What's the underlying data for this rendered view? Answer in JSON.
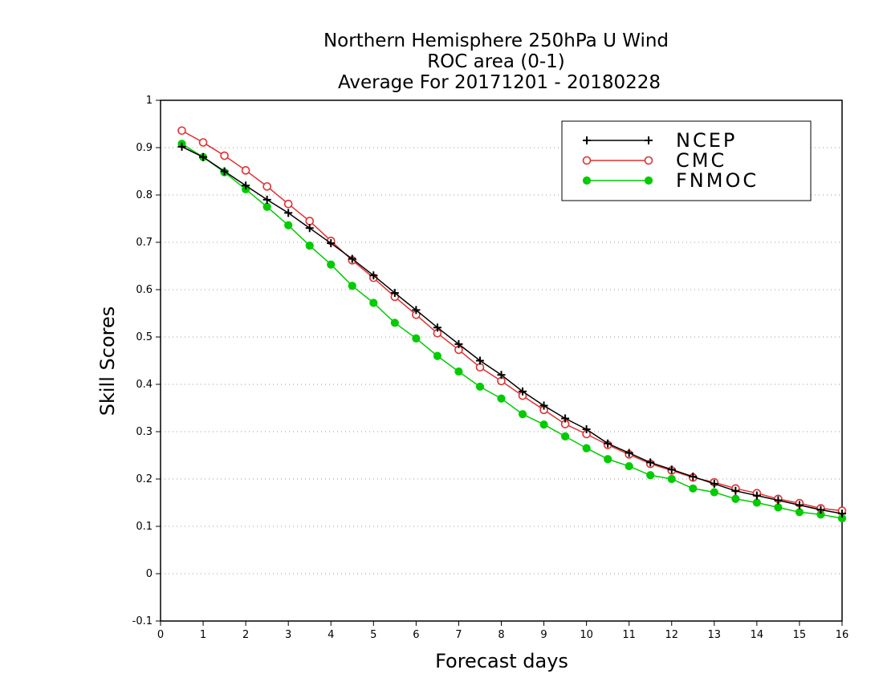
{
  "chart_data": {
    "type": "line",
    "title_lines": [
      "Northern Hemisphere 250hPa U Wind",
      "ROC area (0-1)",
      "Average For 20171201 - 20180228"
    ],
    "xlabel": "Forecast days",
    "ylabel": "Skill Scores",
    "xlim": [
      0,
      16
    ],
    "ylim": [
      -0.1,
      1
    ],
    "x_ticks": [
      "0",
      "1",
      "2",
      "3",
      "4",
      "5",
      "6",
      "7",
      "8",
      "9",
      "10",
      "11",
      "12",
      "13",
      "14",
      "15",
      "16"
    ],
    "y_ticks": [
      "1",
      "0.9",
      "0.8",
      "0.7",
      "0.6",
      "0.5",
      "0.4",
      "0.3",
      "0.2",
      "0.1",
      "0",
      "-0.1"
    ],
    "grid": "horizontal dotted",
    "legend_position": "top-right",
    "x": [
      0.5,
      1,
      1.5,
      2,
      2.5,
      3,
      3.5,
      4,
      4.5,
      5,
      5.5,
      6,
      6.5,
      7,
      7.5,
      8,
      8.5,
      9,
      9.5,
      10,
      10.5,
      11,
      11.5,
      12,
      12.5,
      13,
      13.5,
      14,
      14.5,
      15,
      15.5,
      16
    ],
    "series": [
      {
        "name": "NCEP",
        "color": "#000000",
        "marker": "plus",
        "values": [
          0.902,
          0.88,
          0.85,
          0.82,
          0.79,
          0.762,
          0.73,
          0.698,
          0.665,
          0.63,
          0.593,
          0.557,
          0.52,
          0.485,
          0.45,
          0.42,
          0.385,
          0.355,
          0.328,
          0.305,
          0.275,
          0.255,
          0.235,
          0.22,
          0.205,
          0.19,
          0.175,
          0.165,
          0.155,
          0.145,
          0.135,
          0.127
        ]
      },
      {
        "name": "CMC",
        "color": "#e03030",
        "marker": "open-circle",
        "values": [
          0.936,
          0.911,
          0.883,
          0.852,
          0.818,
          0.781,
          0.745,
          0.703,
          0.662,
          0.625,
          0.585,
          0.547,
          0.508,
          0.473,
          0.436,
          0.407,
          0.376,
          0.346,
          0.316,
          0.295,
          0.272,
          0.252,
          0.232,
          0.218,
          0.203,
          0.193,
          0.18,
          0.17,
          0.158,
          0.149,
          0.138,
          0.133
        ]
      },
      {
        "name": "FNMOC",
        "color": "#00cc00",
        "marker": "filled-circle",
        "values": [
          0.908,
          0.88,
          0.848,
          0.812,
          0.775,
          0.736,
          0.693,
          0.653,
          0.608,
          0.572,
          0.53,
          0.497,
          0.46,
          0.427,
          0.395,
          0.37,
          0.337,
          0.315,
          0.29,
          0.265,
          0.242,
          0.227,
          0.208,
          0.2,
          0.18,
          0.172,
          0.158,
          0.15,
          0.14,
          0.13,
          0.125,
          0.117
        ]
      }
    ]
  }
}
